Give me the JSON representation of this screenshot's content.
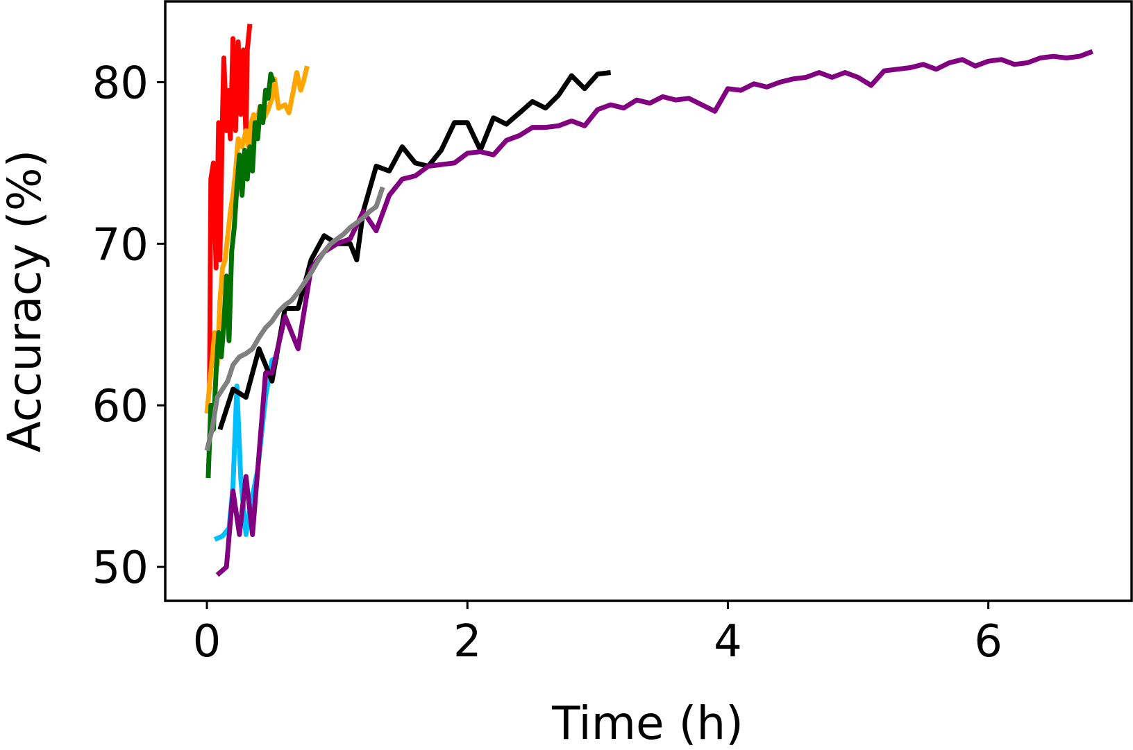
{
  "chart_data": {
    "type": "line",
    "title": "",
    "xlabel": "Time (h)",
    "ylabel": "Accuracy (%)",
    "xlim": [
      -0.32,
      7.1
    ],
    "ylim": [
      47.9,
      85.0
    ],
    "xticks": [
      0,
      2,
      4,
      6
    ],
    "yticks": [
      50,
      60,
      70,
      80
    ],
    "xtick_labels": [
      "0",
      "2",
      "4",
      "6"
    ],
    "ytick_labels": [
      "50",
      "60",
      "70",
      "80"
    ],
    "grid": false,
    "legend": "none",
    "series": [
      {
        "color": "#ff0000",
        "x": [
          0.02,
          0.03,
          0.05,
          0.07,
          0.09,
          0.1,
          0.12,
          0.13,
          0.15,
          0.16,
          0.18,
          0.2,
          0.22,
          0.24,
          0.26,
          0.28,
          0.3,
          0.31,
          0.33
        ],
        "y": [
          61.0,
          74.0,
          75.0,
          68.5,
          77.5,
          69.0,
          78.0,
          81.5,
          77.0,
          79.5,
          76.5,
          82.7,
          77.0,
          82.5,
          78.0,
          82.0,
          76.5,
          82.0,
          83.6
        ]
      },
      {
        "color": "#ffa500",
        "x": [
          0.0,
          0.03,
          0.06,
          0.08,
          0.1,
          0.12,
          0.14,
          0.16,
          0.18,
          0.2,
          0.22,
          0.24,
          0.27,
          0.3,
          0.32,
          0.34,
          0.36,
          0.38,
          0.41,
          0.44,
          0.47,
          0.5,
          0.52,
          0.55,
          0.6,
          0.63,
          0.66,
          0.69,
          0.72,
          0.74,
          0.77
        ],
        "y": [
          59.5,
          62.0,
          64.5,
          62.5,
          66.5,
          68.5,
          69.0,
          70.5,
          72.0,
          73.0,
          74.5,
          76.5,
          76.0,
          77.0,
          76.0,
          77.5,
          78.0,
          77.5,
          78.5,
          77.8,
          78.3,
          79.0,
          80.2,
          78.4,
          78.6,
          78.1,
          79.3,
          80.6,
          79.5,
          80.0,
          81.0
        ]
      },
      {
        "color": "#007000",
        "x": [
          0.01,
          0.03,
          0.05,
          0.07,
          0.09,
          0.11,
          0.13,
          0.15,
          0.17,
          0.19,
          0.21,
          0.23,
          0.25,
          0.27,
          0.29,
          0.31,
          0.33,
          0.35,
          0.37,
          0.39,
          0.41,
          0.43,
          0.45,
          0.47,
          0.49,
          0.51
        ],
        "y": [
          55.5,
          60.0,
          58.5,
          62.0,
          64.5,
          63.0,
          65.0,
          68.0,
          64.0,
          69.5,
          71.0,
          73.5,
          75.5,
          73.0,
          75.8,
          74.0,
          76.0,
          74.5,
          77.5,
          76.5,
          78.5,
          77.5,
          79.5,
          79.0,
          80.5,
          80.0
        ]
      },
      {
        "color": "#00bfff",
        "x": [
          0.06,
          0.12,
          0.17,
          0.2,
          0.23,
          0.26,
          0.3,
          0.34,
          0.39,
          0.45,
          0.5,
          0.55
        ],
        "y": [
          51.7,
          51.9,
          52.4,
          55.0,
          61.2,
          55.5,
          52.0,
          54.0,
          56.0,
          60.5,
          62.8,
          63.0
        ]
      },
      {
        "color": "#000000",
        "x": [
          0.1,
          0.2,
          0.3,
          0.4,
          0.5,
          0.6,
          0.7,
          0.8,
          0.9,
          1.0,
          1.1,
          1.15,
          1.2,
          1.3,
          1.4,
          1.5,
          1.6,
          1.7,
          1.8,
          1.9,
          2.0,
          2.1,
          2.2,
          2.3,
          2.4,
          2.5,
          2.6,
          2.7,
          2.8,
          2.9,
          3.0,
          3.1
        ],
        "y": [
          58.5,
          61.0,
          60.5,
          63.5,
          61.5,
          66.0,
          66.0,
          69.0,
          70.5,
          70.0,
          70.0,
          69.0,
          72.0,
          74.8,
          74.5,
          76.0,
          75.0,
          74.8,
          75.8,
          77.5,
          77.5,
          75.8,
          77.8,
          77.4,
          78.1,
          78.8,
          78.4,
          79.2,
          80.4,
          79.6,
          80.5,
          80.6
        ]
      },
      {
        "color": "#800080",
        "x": [
          0.08,
          0.15,
          0.2,
          0.25,
          0.3,
          0.35,
          0.4,
          0.45,
          0.5,
          0.6,
          0.7,
          0.8,
          0.9,
          1.0,
          1.1,
          1.2,
          1.3,
          1.4,
          1.5,
          1.6,
          1.7,
          1.8,
          1.9,
          2.0,
          2.1,
          2.2,
          2.3,
          2.4,
          2.5,
          2.6,
          2.7,
          2.8,
          2.9,
          3.0,
          3.1,
          3.2,
          3.3,
          3.4,
          3.5,
          3.6,
          3.7,
          3.8,
          3.9,
          4.0,
          4.1,
          4.2,
          4.3,
          4.4,
          4.5,
          4.6,
          4.7,
          4.8,
          4.9,
          5.0,
          5.1,
          5.2,
          5.3,
          5.4,
          5.5,
          5.6,
          5.7,
          5.8,
          5.9,
          6.0,
          6.1,
          6.2,
          6.3,
          6.4,
          6.5,
          6.6,
          6.7,
          6.8
        ],
        "y": [
          49.5,
          50.0,
          54.7,
          52.0,
          55.6,
          52.0,
          57.0,
          62.0,
          62.0,
          65.5,
          63.5,
          68.5,
          69.5,
          70.0,
          70.3,
          72.0,
          70.8,
          73.0,
          74.0,
          74.2,
          74.8,
          74.9,
          75.0,
          75.6,
          75.7,
          75.5,
          76.4,
          76.7,
          77.2,
          77.2,
          77.3,
          77.6,
          77.3,
          78.3,
          78.6,
          78.4,
          78.9,
          78.7,
          79.1,
          78.9,
          79.0,
          78.6,
          78.2,
          79.6,
          79.5,
          79.9,
          79.7,
          80.0,
          80.2,
          80.3,
          80.6,
          80.3,
          80.6,
          80.3,
          79.8,
          80.7,
          80.8,
          80.9,
          81.1,
          80.8,
          81.2,
          81.4,
          81.0,
          81.3,
          81.4,
          81.1,
          81.2,
          81.5,
          81.6,
          81.5,
          81.6,
          81.9
        ]
      },
      {
        "color": "#808080",
        "x": [
          0.0,
          0.04,
          0.08,
          0.12,
          0.16,
          0.2,
          0.25,
          0.3,
          0.35,
          0.4,
          0.45,
          0.5,
          0.55,
          0.6,
          0.65,
          0.7,
          0.75,
          0.8,
          0.85,
          0.9,
          0.95,
          1.0,
          1.05,
          1.1,
          1.15,
          1.2,
          1.25,
          1.3,
          1.35
        ],
        "y": [
          57.2,
          58.5,
          60.5,
          61.0,
          61.5,
          62.5,
          63.0,
          63.2,
          63.5,
          64.2,
          64.8,
          65.2,
          65.8,
          66.2,
          66.5,
          67.0,
          67.6,
          68.2,
          68.9,
          69.5,
          70.0,
          70.3,
          70.6,
          71.0,
          71.3,
          71.6,
          72.0,
          72.3,
          73.5
        ]
      }
    ]
  }
}
